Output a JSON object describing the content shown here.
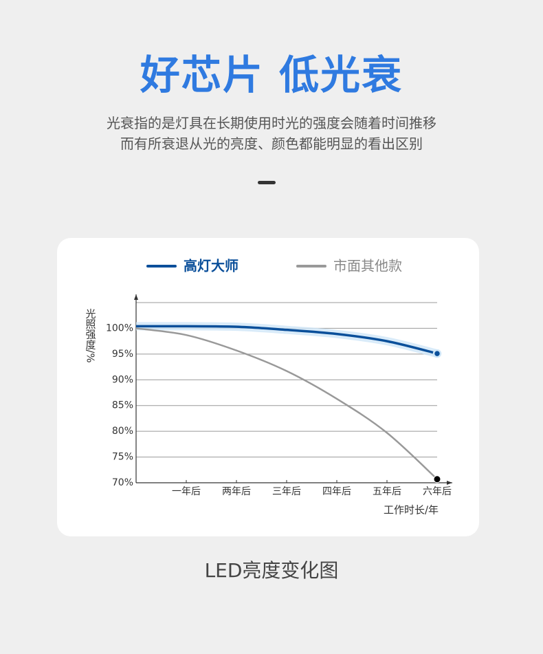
{
  "headline": "好芯片 低光衰",
  "description": [
    "光衰指的是灯具在长期使用时光的强度会随着时间推移",
    "而有所衰退从光的亮度、颜色都能明显的看出区别"
  ],
  "caption": "LED亮度变化图",
  "chart_data": {
    "type": "line",
    "categories": [
      null,
      "一年后",
      "两年后",
      "三年后",
      "四年后",
      "五年后",
      "六年后"
    ],
    "series": [
      {
        "name": "高灯大师",
        "color": "#0a4f9a",
        "values": [
          100.4,
          100.4,
          100.3,
          99.7,
          98.9,
          97.5,
          95.1
        ]
      },
      {
        "name": "市面其他款",
        "color": "#999999",
        "values": [
          100,
          98.7,
          95.7,
          91.7,
          86.3,
          79.7,
          70.7
        ]
      }
    ],
    "y_label": "光照强度/%",
    "x_label": "工作时长/年",
    "ylim": [
      70,
      105
    ],
    "yticks": [
      {
        "value": 70,
        "label": "70%"
      },
      {
        "value": 75,
        "label": "75%"
      },
      {
        "value": 80,
        "label": "80%"
      },
      {
        "value": 85,
        "label": "85%"
      },
      {
        "value": 90,
        "label": "90%"
      },
      {
        "value": 95,
        "label": "95%"
      },
      {
        "value": 100,
        "label": "100%"
      }
    ],
    "grid": true
  }
}
